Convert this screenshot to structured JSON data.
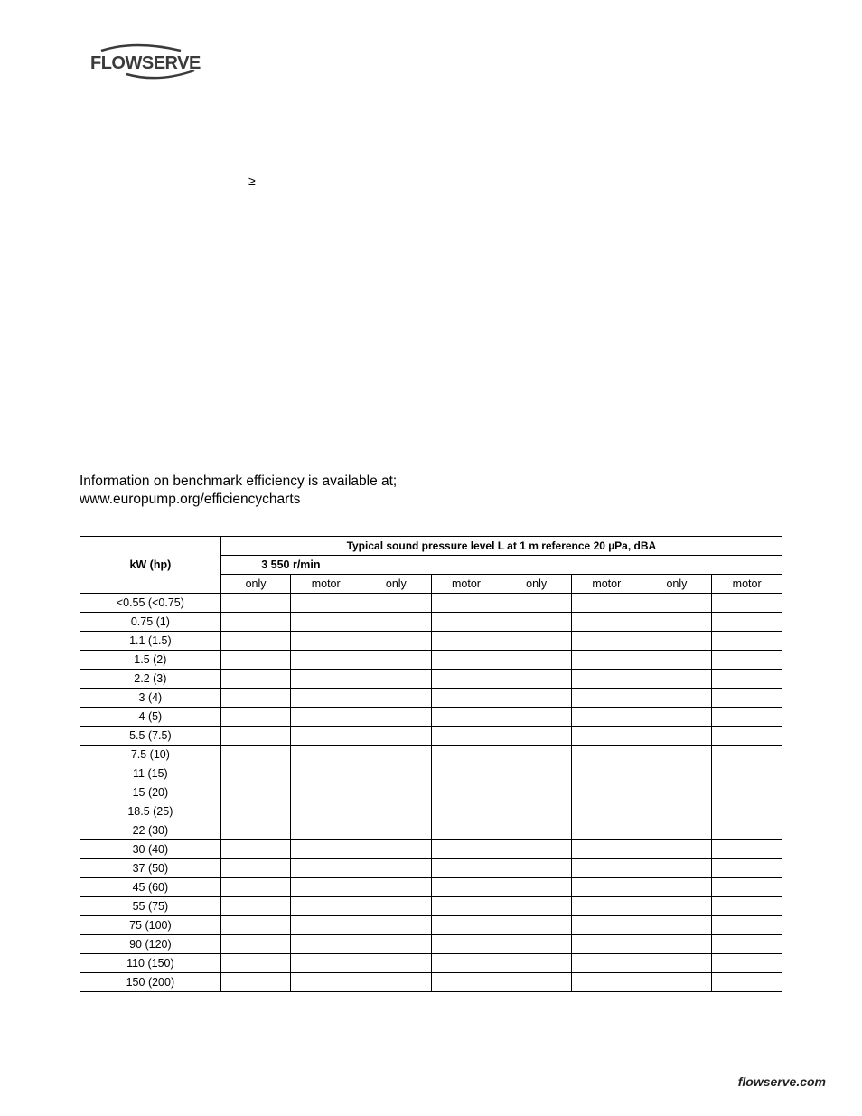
{
  "logo": {
    "text": "FLOWSERVE",
    "color": "#3a3a3a"
  },
  "symbols": {
    "geq": "≥"
  },
  "efficiency": {
    "line1": "Information on benchmark efficiency is available at;",
    "line2": "www.europump.org/efficiencycharts"
  },
  "sound_table": {
    "header_title": "Typical sound pressure level L    at 1 m reference 20 µPa, dBA",
    "kw_header": "kW (hp)",
    "speed_headers": [
      "3 550 r/min",
      "",
      "",
      ""
    ],
    "sub_headers": [
      "only",
      "motor",
      "only",
      "motor",
      "only",
      "motor",
      "only",
      "motor"
    ],
    "rows": [
      "<0.55 (<0.75)",
      "0.75 (1)",
      "1.1 (1.5)",
      "1.5 (2)",
      "2.2 (3)",
      "3 (4)",
      "4 (5)",
      "5.5 (7.5)",
      "7.5 (10)",
      "11 (15)",
      "15 (20)",
      "18.5 (25)",
      "22 (30)",
      "30 (40)",
      "37 (50)",
      "45 (60)",
      "55 (75)",
      "75 (100)",
      "90 (120)",
      "110 (150)",
      "150 (200)"
    ]
  },
  "footer": {
    "text": "flowserve.com"
  },
  "styling": {
    "page_bg": "#ffffff",
    "text_color": "#000000",
    "border_color": "#000000",
    "body_fontsize": 15.5,
    "table_fontsize": 12.5,
    "footer_fontsize": 14
  }
}
